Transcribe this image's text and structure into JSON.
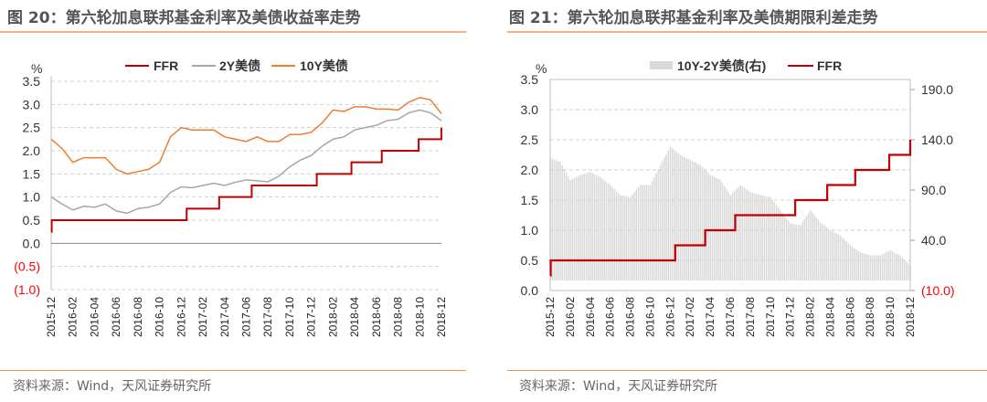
{
  "left_panel": {
    "title": "图 20：第六轮加息联邦基金利率及美债收益率走势",
    "source": "资料来源：Wind，天风证券研究所"
  },
  "right_panel": {
    "title": "图 21：第六轮加息联邦基金利率及美债期限利差走势",
    "source": "资料来源：Wind，天风证券研究所"
  },
  "colors": {
    "ffr": "#c00000",
    "y2": "#a6a6a6",
    "y10": "#ed7d31",
    "spread": "#d9d9d9",
    "negative_tick": "#ff0000",
    "rule": "#f4b183"
  },
  "chart_data": [
    {
      "type": "line",
      "title": "第六轮加息联邦基金利率及美债收益率走势",
      "ylabel": "%",
      "ylim": [
        -1.0,
        3.5
      ],
      "yticks": [
        "3.5",
        "3.0",
        "2.5",
        "2.0",
        "1.5",
        "1.0",
        "0.5",
        "0.0",
        "(0.5)",
        "(1.0)"
      ],
      "ytick_values": [
        3.5,
        3.0,
        2.5,
        2.0,
        1.5,
        1.0,
        0.5,
        0.0,
        -0.5,
        -1.0
      ],
      "grid": true,
      "legend_position": "top",
      "x": [
        "2015-12",
        "2016-01",
        "2016-02",
        "2016-03",
        "2016-04",
        "2016-05",
        "2016-06",
        "2016-07",
        "2016-08",
        "2016-09",
        "2016-10",
        "2016-11",
        "2016-12",
        "2017-01",
        "2017-02",
        "2017-03",
        "2017-04",
        "2017-05",
        "2017-06",
        "2017-07",
        "2017-08",
        "2017-09",
        "2017-10",
        "2017-11",
        "2017-12",
        "2018-01",
        "2018-02",
        "2018-03",
        "2018-04",
        "2018-05",
        "2018-06",
        "2018-07",
        "2018-08",
        "2018-09",
        "2018-10",
        "2018-11",
        "2018-12"
      ],
      "xticks": [
        "2015-12",
        "2016-02",
        "2016-04",
        "2016-06",
        "2016-08",
        "2016-10",
        "2016-12",
        "2017-02",
        "2017-04",
        "2017-06",
        "2017-08",
        "2017-10",
        "2017-12",
        "2018-02",
        "2018-04",
        "2018-06",
        "2018-08",
        "2018-10",
        "2018-12"
      ],
      "series": [
        {
          "name": "FFR",
          "steps": [
            {
              "month_index": 0,
              "value": 0.25
            },
            {
              "month_index": 0.05,
              "value": 0.5
            },
            {
              "month_index": 12.5,
              "value": 0.75
            },
            {
              "month_index": 15.5,
              "value": 1.0
            },
            {
              "month_index": 18.5,
              "value": 1.25
            },
            {
              "month_index": 24.5,
              "value": 1.5
            },
            {
              "month_index": 27.7,
              "value": 1.75
            },
            {
              "month_index": 30.5,
              "value": 2.0
            },
            {
              "month_index": 33.9,
              "value": 2.25
            },
            {
              "month_index": 36,
              "value": 2.5
            }
          ]
        },
        {
          "name": "2Y美债",
          "values": [
            1.0,
            0.85,
            0.72,
            0.8,
            0.78,
            0.85,
            0.7,
            0.65,
            0.75,
            0.78,
            0.85,
            1.1,
            1.22,
            1.2,
            1.25,
            1.3,
            1.25,
            1.32,
            1.37,
            1.35,
            1.33,
            1.45,
            1.65,
            1.8,
            1.9,
            2.1,
            2.25,
            2.3,
            2.45,
            2.5,
            2.55,
            2.65,
            2.68,
            2.82,
            2.88,
            2.82,
            2.65
          ]
        },
        {
          "name": "10Y美债",
          "values": [
            2.25,
            2.05,
            1.75,
            1.85,
            1.85,
            1.85,
            1.6,
            1.5,
            1.55,
            1.6,
            1.75,
            2.3,
            2.5,
            2.45,
            2.45,
            2.45,
            2.3,
            2.25,
            2.2,
            2.3,
            2.2,
            2.2,
            2.35,
            2.35,
            2.4,
            2.6,
            2.88,
            2.85,
            2.95,
            2.95,
            2.9,
            2.9,
            2.88,
            3.05,
            3.15,
            3.1,
            2.8
          ]
        }
      ]
    },
    {
      "type": "bar+line",
      "title": "第六轮加息联邦基金利率及美债期限利差走势",
      "ylabel": "%",
      "ylim": [
        0,
        3.5
      ],
      "y2lim": [
        -10,
        200
      ],
      "yticks": [
        "3.5",
        "3.0",
        "2.5",
        "2.0",
        "1.5",
        "1.0",
        "0.5",
        "0.0"
      ],
      "ytick_values": [
        3.5,
        3.0,
        2.5,
        2.0,
        1.5,
        1.0,
        0.5,
        0.0
      ],
      "y2ticks": [
        "190.0",
        "140.0",
        "90.0",
        "40.0",
        "(10.0)"
      ],
      "y2tick_values": [
        190,
        140,
        90,
        40,
        -10
      ],
      "grid": true,
      "legend_position": "top",
      "xticks": [
        "2015-12",
        "2016-02",
        "2016-04",
        "2016-06",
        "2016-08",
        "2016-10",
        "2016-12",
        "2017-02",
        "2017-04",
        "2017-06",
        "2017-08",
        "2017-10",
        "2017-12",
        "2018-02",
        "2018-04",
        "2018-06",
        "2018-08",
        "2018-10",
        "2018-12"
      ],
      "series": [
        {
          "name": "10Y-2Y美债(右)",
          "axis": "right",
          "values": [
            122,
            118,
            100,
            105,
            108,
            103,
            95,
            85,
            83,
            95,
            95,
            115,
            133,
            125,
            120,
            115,
            105,
            100,
            85,
            95,
            88,
            85,
            83,
            70,
            57,
            55,
            70,
            58,
            50,
            45,
            35,
            28,
            25,
            25,
            30,
            25,
            15
          ]
        },
        {
          "name": "FFR",
          "axis": "left",
          "steps": [
            {
              "month_index": 0,
              "value": 0.25
            },
            {
              "month_index": 0.05,
              "value": 0.5
            },
            {
              "month_index": 12.5,
              "value": 0.75
            },
            {
              "month_index": 15.5,
              "value": 1.0
            },
            {
              "month_index": 18.5,
              "value": 1.25
            },
            {
              "month_index": 24.5,
              "value": 1.5
            },
            {
              "month_index": 27.7,
              "value": 1.75
            },
            {
              "month_index": 30.5,
              "value": 2.0
            },
            {
              "month_index": 33.9,
              "value": 2.25
            },
            {
              "month_index": 36,
              "value": 2.5
            }
          ]
        }
      ]
    }
  ]
}
